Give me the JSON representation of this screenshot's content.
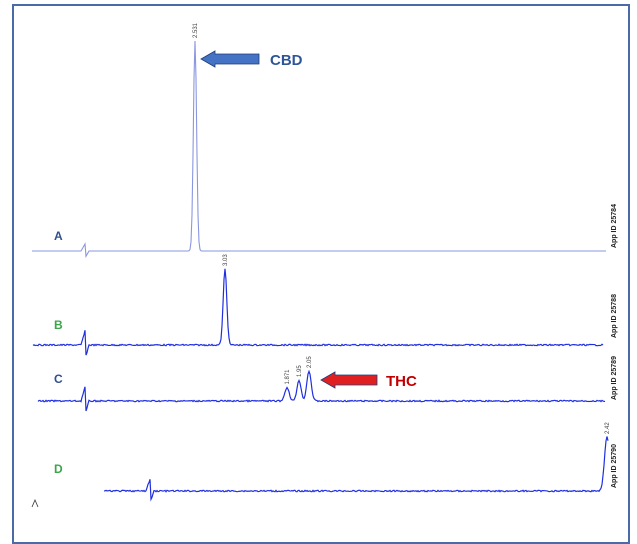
{
  "chart_data": {
    "type": "line",
    "title": "",
    "xlabel": "",
    "ylabel": "",
    "traces": [
      {
        "letter": "A",
        "letter_color": "#2f4f8f",
        "line_color": "#8a97e0",
        "app_id": "App ID 25784",
        "peaks": [
          {
            "label": "2.531",
            "height": 1.0,
            "width": 1.6
          }
        ],
        "noise": 0.0
      },
      {
        "letter": "B",
        "letter_color": "#3aa64a",
        "line_color": "#1f2fe0",
        "app_id": "App ID 25788",
        "peaks": [
          {
            "label": "3.03",
            "height": 1.0,
            "width": 1.8
          }
        ],
        "noise": 0.6
      },
      {
        "letter": "C",
        "letter_color": "#2f4f8f",
        "line_color": "#1f2fe0",
        "app_id": "App ID 25789",
        "peaks": [
          {
            "label": "1.871",
            "height": 0.45,
            "width": 2.2
          },
          {
            "label": "1.95",
            "height": 0.7,
            "width": 2.0
          },
          {
            "label": "2.05",
            "height": 1.0,
            "width": 2.2
          }
        ],
        "noise": 0.6
      },
      {
        "letter": "D",
        "letter_color": "#3aa64a",
        "line_color": "#1f2fe0",
        "app_id": "App ID 25790",
        "peaks": [
          {
            "label": "2.42",
            "height": 1.0,
            "width": 2.5
          }
        ],
        "noise": 0.6
      }
    ],
    "annotations": [
      {
        "text": "CBD",
        "color": "#2f5597",
        "arrow_color": "#4472c4",
        "target_trace": "A"
      },
      {
        "text": "THC",
        "color": "#c00000",
        "arrow_color": "#e02020",
        "target_trace": "C"
      }
    ]
  }
}
